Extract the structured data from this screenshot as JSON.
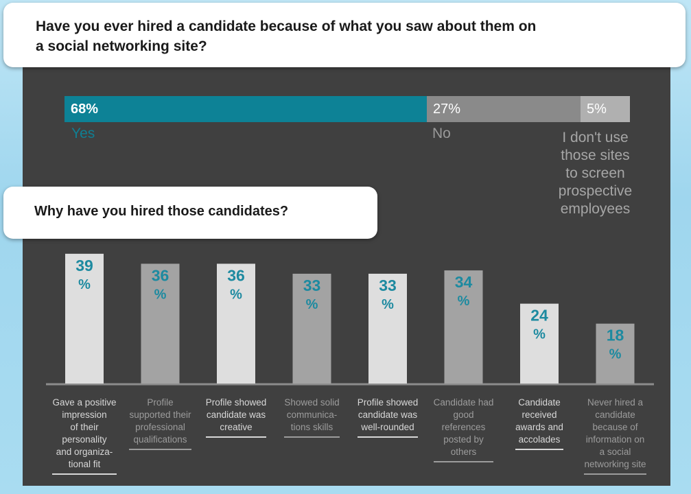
{
  "question": "Have you ever hired a candidate because of what you saw about them on a social networking site?",
  "question_lines": [
    "Have you ever hired a candidate because of what you saw about them on",
    "a social networking site?"
  ],
  "subquestion": "Why have you hired those candidates?",
  "colors": {
    "yes": "#0d8296",
    "no": "#8a8a8a",
    "dont_use": "#b0b0b0",
    "panel": "#404040",
    "bar_light": "#dedede",
    "bar_dark": "#a3a3a3",
    "value_text": "#1d8aa0"
  },
  "top_split": [
    {
      "value": "68%",
      "label": "Yes"
    },
    {
      "value": "27%",
      "label": "No"
    },
    {
      "value": "5%",
      "label_lines": [
        "I don't use",
        "those sites",
        "to screen",
        "prospective",
        "employees"
      ]
    }
  ],
  "chart_data": {
    "type": "bar",
    "title": "Why have you hired those candidates?",
    "unit": "%",
    "values": [
      39,
      36,
      36,
      33,
      33,
      34,
      24,
      18
    ],
    "categories": [
      [
        "Gave a positive",
        "impression",
        "of their",
        "personality",
        "and organiza-",
        "tional fit"
      ],
      [
        "Profile",
        "supported their",
        "professional",
        "qualifications"
      ],
      [
        "Profile showed",
        "candidate was",
        "creative"
      ],
      [
        "Showed solid",
        "communica-",
        "tions skills"
      ],
      [
        "Profile showed",
        "candidate was",
        "well-rounded"
      ],
      [
        "Candidate had",
        "good",
        "references",
        "posted by",
        "others"
      ],
      [
        "Candidate",
        "received",
        "awards and",
        "accolades"
      ],
      [
        "Never hired a",
        "candidate",
        "because of",
        "information on",
        "a social",
        "networking site"
      ]
    ],
    "ylim": [
      0,
      40
    ]
  }
}
